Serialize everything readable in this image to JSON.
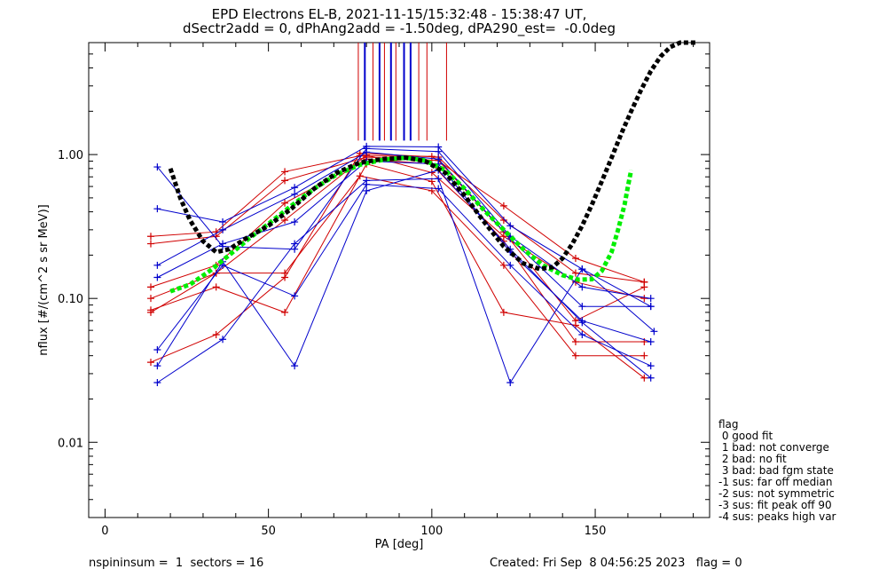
{
  "titles": {
    "line1": "EPD Electrons EL-B, 2021-11-15/15:32:48 - 15:38:47 UT,",
    "line2": "dSectr2add = 0, dPhAng2add = -1.50deg, dPA290_est=  -0.0deg"
  },
  "legend": {
    "title": "flag",
    "items": [
      " 0 good fit",
      " 1 bad: not converge",
      " 2 bad: no fit",
      " 3 bad: bad fgm state",
      "-1 sus: far off median",
      "-2 sus: not symmetric",
      "-3 sus: fit peak off 90",
      "-4 sus: peaks high var"
    ]
  },
  "footer": {
    "left": "nspininsum =  1  sectors = 16",
    "right": "Created: Fri Sep  8 04:56:25 2023   flag = 0"
  },
  "chart_data": {
    "type": "line",
    "xlabel": "PA [deg]",
    "ylabel": "nflux [#/(cm^2 s sr MeV)]",
    "xlim": [
      -5,
      185
    ],
    "ylim": [
      0.003,
      6.0
    ],
    "yscale": "log",
    "xticks": [
      0,
      50,
      100,
      150
    ],
    "xtick_labels": [
      "0",
      "50",
      "100",
      "150"
    ],
    "yticks": [
      0.01,
      0.1,
      1.0
    ],
    "ytick_labels": [
      "0.01",
      "0.10",
      "1.00"
    ],
    "colors": {
      "red": "#d00000",
      "blue": "#0000cc",
      "black_fit": "#000000",
      "green_fit": "#00ee00"
    },
    "vertical_lines": {
      "red_x": [
        77.5,
        82,
        85.5,
        89,
        96,
        98.5,
        104.5
      ],
      "blue_x": [
        79.5,
        84,
        87.5,
        91.5,
        93.5
      ],
      "y_top": 6.0,
      "y_bottom": 1.25
    },
    "series": [
      {
        "color": "red",
        "x": [
          14,
          34,
          55,
          78,
          100,
          122,
          144,
          165
        ],
        "y": [
          0.27,
          0.29,
          0.76,
          0.98,
          0.97,
          0.44,
          0.19,
          0.13
        ]
      },
      {
        "color": "red",
        "x": [
          14,
          34,
          55,
          80,
          102,
          122,
          144,
          165
        ],
        "y": [
          0.24,
          0.27,
          0.66,
          0.96,
          0.91,
          0.29,
          0.07,
          0.12
        ]
      },
      {
        "color": "red",
        "x": [
          14,
          34,
          55,
          80,
          100,
          122,
          144,
          165
        ],
        "y": [
          0.12,
          0.17,
          0.46,
          0.93,
          0.86,
          0.25,
          0.05,
          0.05
        ]
      },
      {
        "color": "red",
        "x": [
          14,
          34,
          55,
          78,
          100,
          122,
          144,
          165
        ],
        "y": [
          0.1,
          0.15,
          0.15,
          0.71,
          0.56,
          0.17,
          0.04,
          0.04
        ]
      },
      {
        "color": "red",
        "x": [
          14,
          34,
          55,
          80,
          100,
          122,
          144,
          165
        ],
        "y": [
          0.083,
          0.12,
          0.08,
          0.86,
          0.65,
          0.08,
          0.065,
          0.028
        ]
      },
      {
        "color": "red",
        "x": [
          14,
          34,
          55,
          78,
          102,
          122,
          144,
          165
        ],
        "y": [
          0.036,
          0.056,
          0.14,
          1.02,
          0.96,
          0.35,
          0.15,
          0.13
        ]
      },
      {
        "color": "red",
        "x": [
          14,
          34,
          55,
          80,
          100,
          122,
          144,
          165
        ],
        "y": [
          0.08,
          0.15,
          0.35,
          0.99,
          0.75,
          0.27,
          0.13,
          0.1
        ]
      },
      {
        "color": "blue",
        "x": [
          16,
          36,
          58,
          80,
          102,
          124,
          146,
          167
        ],
        "y": [
          0.82,
          0.23,
          0.22,
          1.1,
          1.05,
          0.27,
          0.12,
          0.1
        ]
      },
      {
        "color": "blue",
        "x": [
          16,
          36,
          58,
          80,
          102,
          124,
          146,
          167
        ],
        "y": [
          0.42,
          0.34,
          0.59,
          1.14,
          1.13,
          0.32,
          0.16,
          0.088
        ]
      },
      {
        "color": "blue",
        "x": [
          16,
          36,
          58,
          80,
          102,
          124,
          146,
          167
        ],
        "y": [
          0.17,
          0.3,
          0.53,
          1.04,
          0.93,
          0.26,
          0.088,
          0.088
        ]
      },
      {
        "color": "blue",
        "x": [
          16,
          36,
          58,
          80,
          102,
          124,
          146,
          167
        ],
        "y": [
          0.14,
          0.24,
          0.34,
          0.9,
          0.86,
          0.21,
          0.07,
          0.05
        ]
      },
      {
        "color": "blue",
        "x": [
          16,
          36,
          58,
          80,
          102,
          124,
          146,
          167
        ],
        "y": [
          0.044,
          0.17,
          0.104,
          0.62,
          0.58,
          0.17,
          0.056,
          0.034
        ]
      },
      {
        "color": "blue",
        "x": [
          16,
          36,
          58,
          80,
          102,
          124,
          146,
          167
        ],
        "y": [
          0.034,
          0.18,
          0.034,
          0.56,
          0.78,
          0.22,
          0.068,
          0.028
        ]
      },
      {
        "color": "blue",
        "x": [
          16,
          36,
          58,
          80,
          102,
          124,
          146,
          168
        ],
        "y": [
          0.026,
          0.052,
          0.24,
          0.66,
          0.68,
          0.026,
          0.16,
          0.059
        ]
      }
    ],
    "fit_black": {
      "x": [
        20,
        23,
        26,
        30,
        34,
        38,
        43,
        50,
        57,
        64,
        71,
        78,
        85,
        92,
        98,
        104,
        110,
        116,
        122,
        128,
        133,
        137,
        140,
        143,
        146,
        149,
        152,
        155,
        158,
        161,
        164,
        167,
        170,
        173,
        176,
        179,
        181
      ],
      "y": [
        0.8,
        0.5,
        0.35,
        0.25,
        0.21,
        0.22,
        0.26,
        0.32,
        0.42,
        0.58,
        0.75,
        0.88,
        0.93,
        0.95,
        0.9,
        0.75,
        0.52,
        0.34,
        0.23,
        0.175,
        0.16,
        0.165,
        0.19,
        0.24,
        0.32,
        0.45,
        0.65,
        0.95,
        1.4,
        2.0,
        2.8,
        3.8,
        4.8,
        5.6,
        6.0,
        6.0,
        6.0
      ]
    },
    "fit_green": {
      "x": [
        20,
        26,
        32,
        38,
        44,
        50,
        57,
        64,
        71,
        78,
        85,
        92,
        98,
        104,
        110,
        116,
        122,
        128,
        134,
        140,
        145,
        149,
        152,
        155,
        157,
        159,
        160,
        161
      ],
      "y": [
        0.112,
        0.125,
        0.155,
        0.2,
        0.26,
        0.33,
        0.44,
        0.58,
        0.73,
        0.85,
        0.92,
        0.95,
        0.91,
        0.78,
        0.58,
        0.41,
        0.3,
        0.22,
        0.17,
        0.145,
        0.135,
        0.136,
        0.155,
        0.21,
        0.3,
        0.45,
        0.6,
        0.78
      ]
    }
  }
}
